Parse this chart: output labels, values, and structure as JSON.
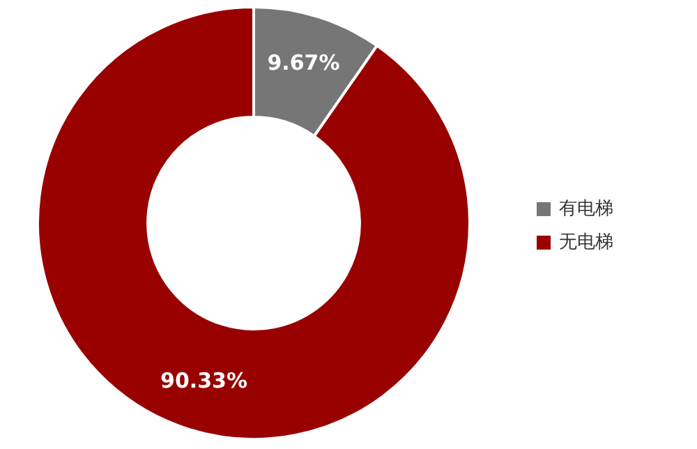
{
  "chart_data": {
    "type": "donut",
    "categories": [
      "有电梯",
      "无电梯"
    ],
    "values": [
      9.67,
      90.33
    ],
    "colors": [
      "#767676",
      "#990000"
    ],
    "value_labels": [
      "9.67%",
      "90.33%"
    ],
    "legend": "right"
  }
}
